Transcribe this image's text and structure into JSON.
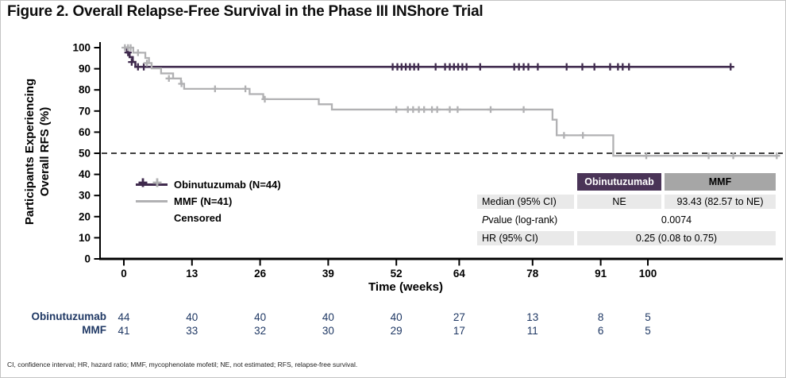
{
  "title": "Figure 2. Overall Relapse-Free Survival in the Phase III INShore Trial",
  "footnote": "CI, confidence interval; HR, hazard ratio; MMF, mycophenolate mofetil; NE, not estimated; RFS, relapse-free survival.",
  "colors": {
    "obinutuzumab_line": "#3f2a4d",
    "mmf_line": "#b1b1b3",
    "header_purple": "#4a3457",
    "header_gray": "#a6a6a6",
    "row_light": "#e9e9e9",
    "at_risk_text": "#1f3864",
    "axis": "#000000"
  },
  "legend": {
    "items": [
      {
        "label": "Obinutuzumab (N=44)"
      },
      {
        "label": "MMF (N=41)"
      },
      {
        "label": "Censored"
      }
    ]
  },
  "stats_table": {
    "col_headers": [
      "Obinutuzumab",
      "MMF"
    ],
    "rows": [
      {
        "label": "Median (95% CI)",
        "obinutuzumab": "NE",
        "mmf": "93.43 (82.57 to NE)"
      },
      {
        "label_italic": "P",
        "label_rest": " value (log-rank)",
        "merged": "0.0074"
      },
      {
        "label": "HR (95% CI)",
        "merged": "0.25 (0.08 to 0.75)"
      }
    ]
  },
  "chart_data": {
    "type": "line",
    "subtype": "kaplan-meier-step",
    "title": "",
    "xlabel": "Time (weeks)",
    "ylabel": "Participants Experiencing Overall RFS (%)",
    "ylabel_lines": [
      "Participants Experiencing",
      "Overall RFS (%)"
    ],
    "x_ticks": [
      0,
      13,
      26,
      39,
      52,
      64,
      78,
      91,
      100
    ],
    "y_ticks": [
      0,
      10,
      20,
      30,
      40,
      50,
      60,
      70,
      80,
      90,
      100
    ],
    "xlim": [
      0,
      126
    ],
    "ylim": [
      0,
      100
    ],
    "reference_line_y": 50,
    "grid": false,
    "legend_position": "inside-left",
    "series": [
      {
        "name": "Obinutuzumab (N=44)",
        "color": "#3f2a4d",
        "steps": [
          [
            0,
            100
          ],
          [
            0.6,
            97.7
          ],
          [
            1.1,
            95.5
          ],
          [
            1.7,
            93.2
          ],
          [
            2.2,
            90.9
          ]
        ],
        "end_week": 115.8,
        "censored": [
          [
            0.8,
            97.7
          ],
          [
            1.5,
            93.2
          ],
          [
            2.7,
            90.9
          ],
          [
            3.8,
            90.9
          ],
          [
            51.3,
            90.9
          ],
          [
            52.2,
            90.9
          ],
          [
            53,
            90.9
          ],
          [
            53.8,
            90.9
          ],
          [
            54.6,
            90.9
          ],
          [
            55.4,
            90.9
          ],
          [
            56.2,
            90.9
          ],
          [
            59.5,
            90.9
          ],
          [
            61.3,
            90.9
          ],
          [
            62.2,
            90.9
          ],
          [
            63,
            90.9
          ],
          [
            63.8,
            90.9
          ],
          [
            64.6,
            90.9
          ],
          [
            65.4,
            90.9
          ],
          [
            68,
            90.9
          ],
          [
            74.5,
            90.9
          ],
          [
            75.4,
            90.9
          ],
          [
            76.3,
            90.9
          ],
          [
            77.2,
            90.9
          ],
          [
            79,
            90.9
          ],
          [
            84.5,
            90.9
          ],
          [
            87.5,
            90.9
          ],
          [
            89.8,
            90.9
          ],
          [
            92.8,
            90.9
          ],
          [
            94.3,
            90.9
          ],
          [
            95.2,
            90.9
          ],
          [
            96.4,
            90.9
          ],
          [
            115.8,
            90.9
          ]
        ]
      },
      {
        "name": "MMF (N=41)",
        "color": "#b1b1b3",
        "steps": [
          [
            0,
            100
          ],
          [
            1.8,
            97.6
          ],
          [
            4.1,
            95.1
          ],
          [
            4.8,
            92.7
          ],
          [
            5.3,
            90.2
          ],
          [
            7.1,
            87.8
          ],
          [
            9.4,
            85.4
          ],
          [
            10.9,
            82.9
          ],
          [
            11.5,
            80.5
          ],
          [
            24,
            78
          ],
          [
            26.6,
            75.6
          ],
          [
            37.2,
            73.2
          ],
          [
            39.7,
            70.7
          ],
          [
            81.8,
            65.9
          ],
          [
            82.6,
            58.5
          ],
          [
            93.4,
            48.8
          ]
        ],
        "end_week": 124.8,
        "censored": [
          [
            0.2,
            100
          ],
          [
            0.8,
            100
          ],
          [
            1.3,
            100
          ],
          [
            2.7,
            97.6
          ],
          [
            4.4,
            92.7
          ],
          [
            8.6,
            85.4
          ],
          [
            11,
            82.9
          ],
          [
            17.4,
            80.5
          ],
          [
            23.2,
            80.5
          ],
          [
            26.9,
            75.6
          ],
          [
            52,
            70.7
          ],
          [
            54.2,
            70.7
          ],
          [
            55.2,
            70.7
          ],
          [
            56.3,
            70.7
          ],
          [
            57.3,
            70.7
          ],
          [
            58.8,
            70.7
          ],
          [
            59.8,
            70.7
          ],
          [
            62.2,
            70.7
          ],
          [
            63.7,
            70.7
          ],
          [
            70,
            70.7
          ],
          [
            76.3,
            70.7
          ],
          [
            84,
            58.5
          ],
          [
            87.6,
            58.5
          ],
          [
            99.7,
            48.8
          ],
          [
            111.6,
            48.8
          ],
          [
            116.3,
            48.8
          ],
          [
            124.6,
            48.8
          ]
        ]
      }
    ],
    "at_risk": {
      "weeks": [
        0,
        13,
        26,
        39,
        52,
        64,
        78,
        91,
        100
      ],
      "rows": [
        {
          "label": "Obinutuzumab",
          "values": [
            44,
            40,
            40,
            40,
            40,
            27,
            13,
            8,
            5
          ]
        },
        {
          "label": "MMF",
          "values": [
            41,
            33,
            32,
            30,
            29,
            17,
            11,
            6,
            5
          ]
        }
      ]
    }
  }
}
